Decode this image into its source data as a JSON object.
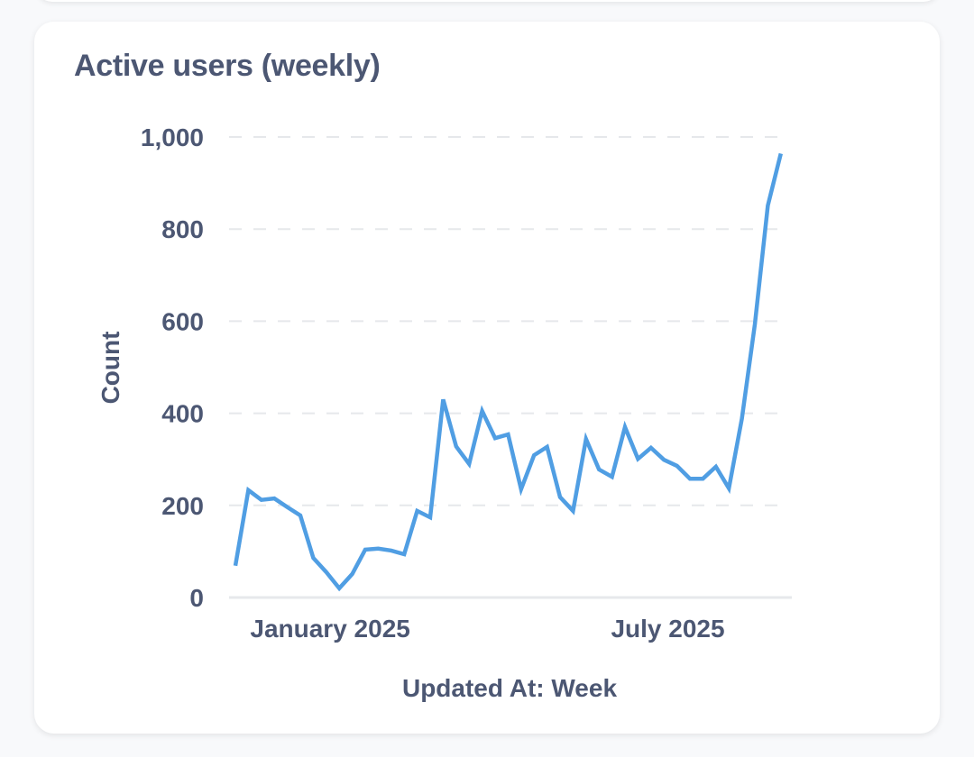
{
  "card": {
    "title": "Active users (weekly)"
  },
  "colors": {
    "line": "#509ee3",
    "text": "#4c5773",
    "grid": "#e6e8eb",
    "background": "#f8f9fb",
    "card": "#ffffff"
  },
  "chart_data": {
    "type": "line",
    "title": "Active users (weekly)",
    "xlabel": "Updated At: Week",
    "ylabel": "Count",
    "ylim": [
      0,
      1000
    ],
    "yticks": [
      0,
      200,
      400,
      600,
      800,
      1000
    ],
    "ytick_labels": [
      "0",
      "200",
      "400",
      "600",
      "800",
      "1,000"
    ],
    "x_tick_labels": [
      {
        "label": "January 2025",
        "week_index": 7.3
      },
      {
        "label": "July 2025",
        "week_index": 33.3
      }
    ],
    "grid": true,
    "legend": "none",
    "series": [
      {
        "name": "Count",
        "values": [
          69,
          233,
          212,
          215,
          196,
          178,
          86,
          55,
          20,
          51,
          104,
          106,
          102,
          94,
          188,
          174,
          430,
          328,
          290,
          405,
          346,
          354,
          235,
          309,
          327,
          218,
          188,
          344,
          278,
          262,
          370,
          301,
          325,
          299,
          286,
          258,
          258,
          284,
          237,
          388,
          593,
          851,
          964
        ]
      }
    ]
  }
}
